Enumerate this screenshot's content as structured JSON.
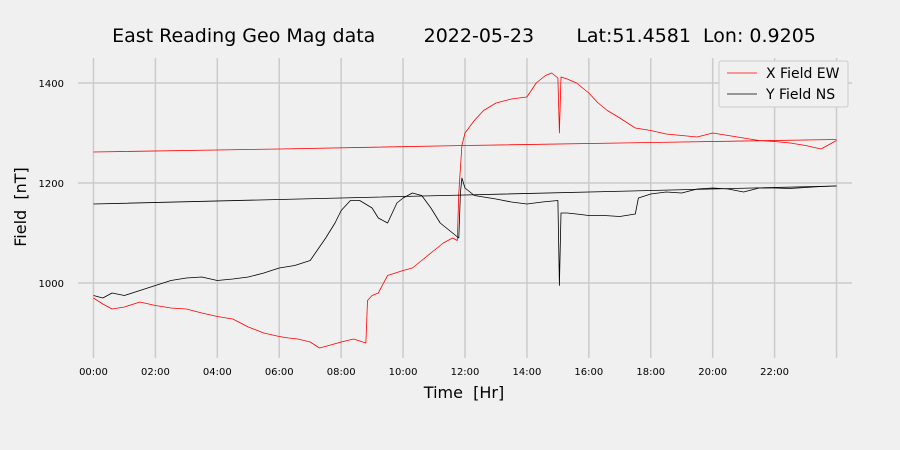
{
  "chart_data": {
    "type": "line",
    "title": "East Reading Geo Mag data        2022-05-23       Lat:51.4581  Lon: 0.9205",
    "xlabel": "Time  [Hr]",
    "ylabel": "Field  [nT]",
    "xlim": [
      -0.5,
      24.5
    ],
    "ylim": [
      850,
      1450
    ],
    "x_ticks": [
      0,
      2,
      4,
      6,
      8,
      10,
      12,
      14,
      16,
      18,
      20,
      22
    ],
    "x_tick_labels": [
      "00:00",
      "02:00",
      "04:00",
      "06:00",
      "08:00",
      "10:00",
      "12:00",
      "14:00",
      "16:00",
      "18:00",
      "20:00",
      "22:00"
    ],
    "y_ticks": [
      1000,
      1200,
      1400
    ],
    "y_tick_labels": [
      "1000",
      "1200",
      "1400"
    ],
    "grid": true,
    "legend_position": "top-right",
    "series": [
      {
        "name": "X Field EW",
        "color": "#ff0000",
        "x": [
          0,
          0.3,
          0.6,
          1,
          1.5,
          2,
          2.5,
          3,
          3.5,
          4,
          4.5,
          5,
          5.5,
          6,
          6.3,
          6.6,
          7,
          7.3,
          7.6,
          8,
          8.4,
          8.8,
          8.85,
          9,
          9.2,
          9.5,
          10,
          10.3,
          10.6,
          11,
          11.3,
          11.6,
          11.75,
          11.8,
          11.9,
          12.0,
          12.3,
          12.6,
          13,
          13.5,
          14,
          14.3,
          14.6,
          14.8,
          15.0,
          15.05,
          15.1,
          15.3,
          15.6,
          16,
          16.3,
          16.6,
          17,
          17.5,
          18,
          18.5,
          19,
          19.5,
          20,
          20.5,
          21,
          21.5,
          22,
          22.5,
          23,
          23.5,
          24
        ],
        "y": [
          970,
          958,
          948,
          952,
          962,
          955,
          950,
          948,
          940,
          933,
          928,
          912,
          900,
          893,
          890,
          888,
          882,
          870,
          875,
          882,
          888,
          880,
          965,
          975,
          980,
          1015,
          1025,
          1030,
          1045,
          1065,
          1080,
          1090,
          1085,
          1180,
          1275,
          1300,
          1325,
          1345,
          1360,
          1368,
          1372,
          1400,
          1415,
          1420,
          1410,
          1300,
          1412,
          1408,
          1400,
          1380,
          1360,
          1345,
          1330,
          1310,
          1305,
          1298,
          1295,
          1292,
          1300,
          1295,
          1290,
          1285,
          1283,
          1280,
          1275,
          1268,
          1285
        ]
      },
      {
        "name": "Y Field NS",
        "color": "#000000",
        "x": [
          0,
          0.3,
          0.6,
          1,
          1.5,
          2,
          2.5,
          3,
          3.5,
          4,
          4.5,
          5,
          5.5,
          6,
          6.5,
          7,
          7.5,
          7.8,
          8,
          8.3,
          8.6,
          9,
          9.2,
          9.5,
          9.8,
          10,
          10.3,
          10.6,
          10.9,
          11.2,
          11.6,
          11.8,
          11.85,
          11.9,
          12.0,
          12.3,
          12.6,
          13,
          13.5,
          14,
          14.5,
          15,
          15.05,
          15.1,
          15.3,
          15.6,
          16,
          16.5,
          17,
          17.5,
          17.6,
          18,
          18.5,
          19,
          19.5,
          20,
          20.5,
          21,
          21.5,
          22,
          22.5,
          23,
          23.5,
          24
        ],
        "y": [
          975,
          970,
          980,
          975,
          985,
          995,
          1005,
          1010,
          1012,
          1005,
          1008,
          1012,
          1020,
          1030,
          1035,
          1045,
          1090,
          1120,
          1145,
          1165,
          1165,
          1150,
          1130,
          1120,
          1160,
          1170,
          1180,
          1175,
          1150,
          1120,
          1100,
          1090,
          1180,
          1210,
          1190,
          1175,
          1172,
          1168,
          1162,
          1158,
          1162,
          1165,
          995,
          1140,
          1140,
          1138,
          1135,
          1135,
          1133,
          1138,
          1170,
          1178,
          1182,
          1180,
          1188,
          1190,
          1188,
          1182,
          1190,
          1190,
          1189,
          1191,
          1193,
          1194
        ]
      },
      {
        "name": "",
        "color": "#ff0000",
        "x": [
          0,
          6,
          12,
          18,
          24
        ],
        "y": [
          1262,
          1268,
          1275,
          1281,
          1287
        ]
      },
      {
        "name": "",
        "color": "#000000",
        "x": [
          0,
          6,
          12,
          18,
          24
        ],
        "y": [
          1158,
          1167,
          1176,
          1185,
          1194
        ]
      }
    ]
  }
}
